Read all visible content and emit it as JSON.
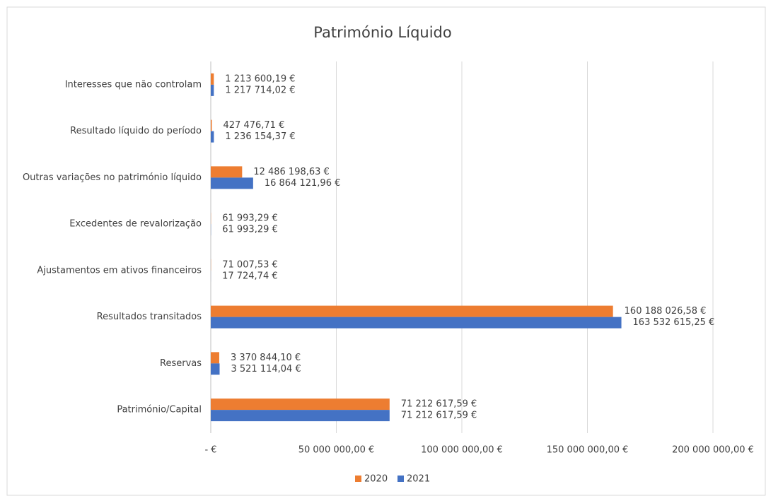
{
  "chart_data": {
    "type": "hbar",
    "title": "Património Líquido",
    "categories": [
      "Interesses que não controlam",
      "Resultado líquido do período",
      "Outras variações no património líquido",
      "Excedentes de revalorização",
      "Ajustamentos em ativos financeiros",
      "Resultados transitados",
      "Reservas",
      "Património/Capital"
    ],
    "series": [
      {
        "name": "2020",
        "color": "#ED7D31",
        "values": [
          1213600.19,
          427476.71,
          12486198.63,
          61993.29,
          71007.53,
          160188026.58,
          3370844.1,
          71212617.59
        ],
        "value_labels": [
          "1 213 600,19 €",
          "427 476,71 €",
          "12 486 198,63 €",
          "61 993,29 €",
          "71 007,53 €",
          "160 188 026,58 €",
          "3 370 844,10 €",
          "71 212 617,59 €"
        ]
      },
      {
        "name": "2021",
        "color": "#4472C4",
        "values": [
          1217714.02,
          1236154.37,
          16864121.96,
          61993.29,
          17724.74,
          163532615.25,
          3521114.04,
          71212617.59
        ],
        "value_labels": [
          "1 217 714,02 €",
          "1 236 154,37 €",
          "16 864 121,96 €",
          "61 993,29 €",
          "17 724,74 €",
          "163 532 615,25 €",
          "3 521 114,04 €",
          "71 212 617,59 €"
        ]
      }
    ],
    "xlim": [
      0,
      200000000
    ],
    "xticks": [
      {
        "value": 0,
        "label": "-   €"
      },
      {
        "value": 50000000,
        "label": "50 000 000,00 €"
      },
      {
        "value": 100000000,
        "label": "100 000 000,00 €"
      },
      {
        "value": 150000000,
        "label": "150 000 000,00 €"
      },
      {
        "value": 200000000,
        "label": "200 000 000,00 €"
      }
    ],
    "grid": true,
    "legend": "bottom"
  }
}
